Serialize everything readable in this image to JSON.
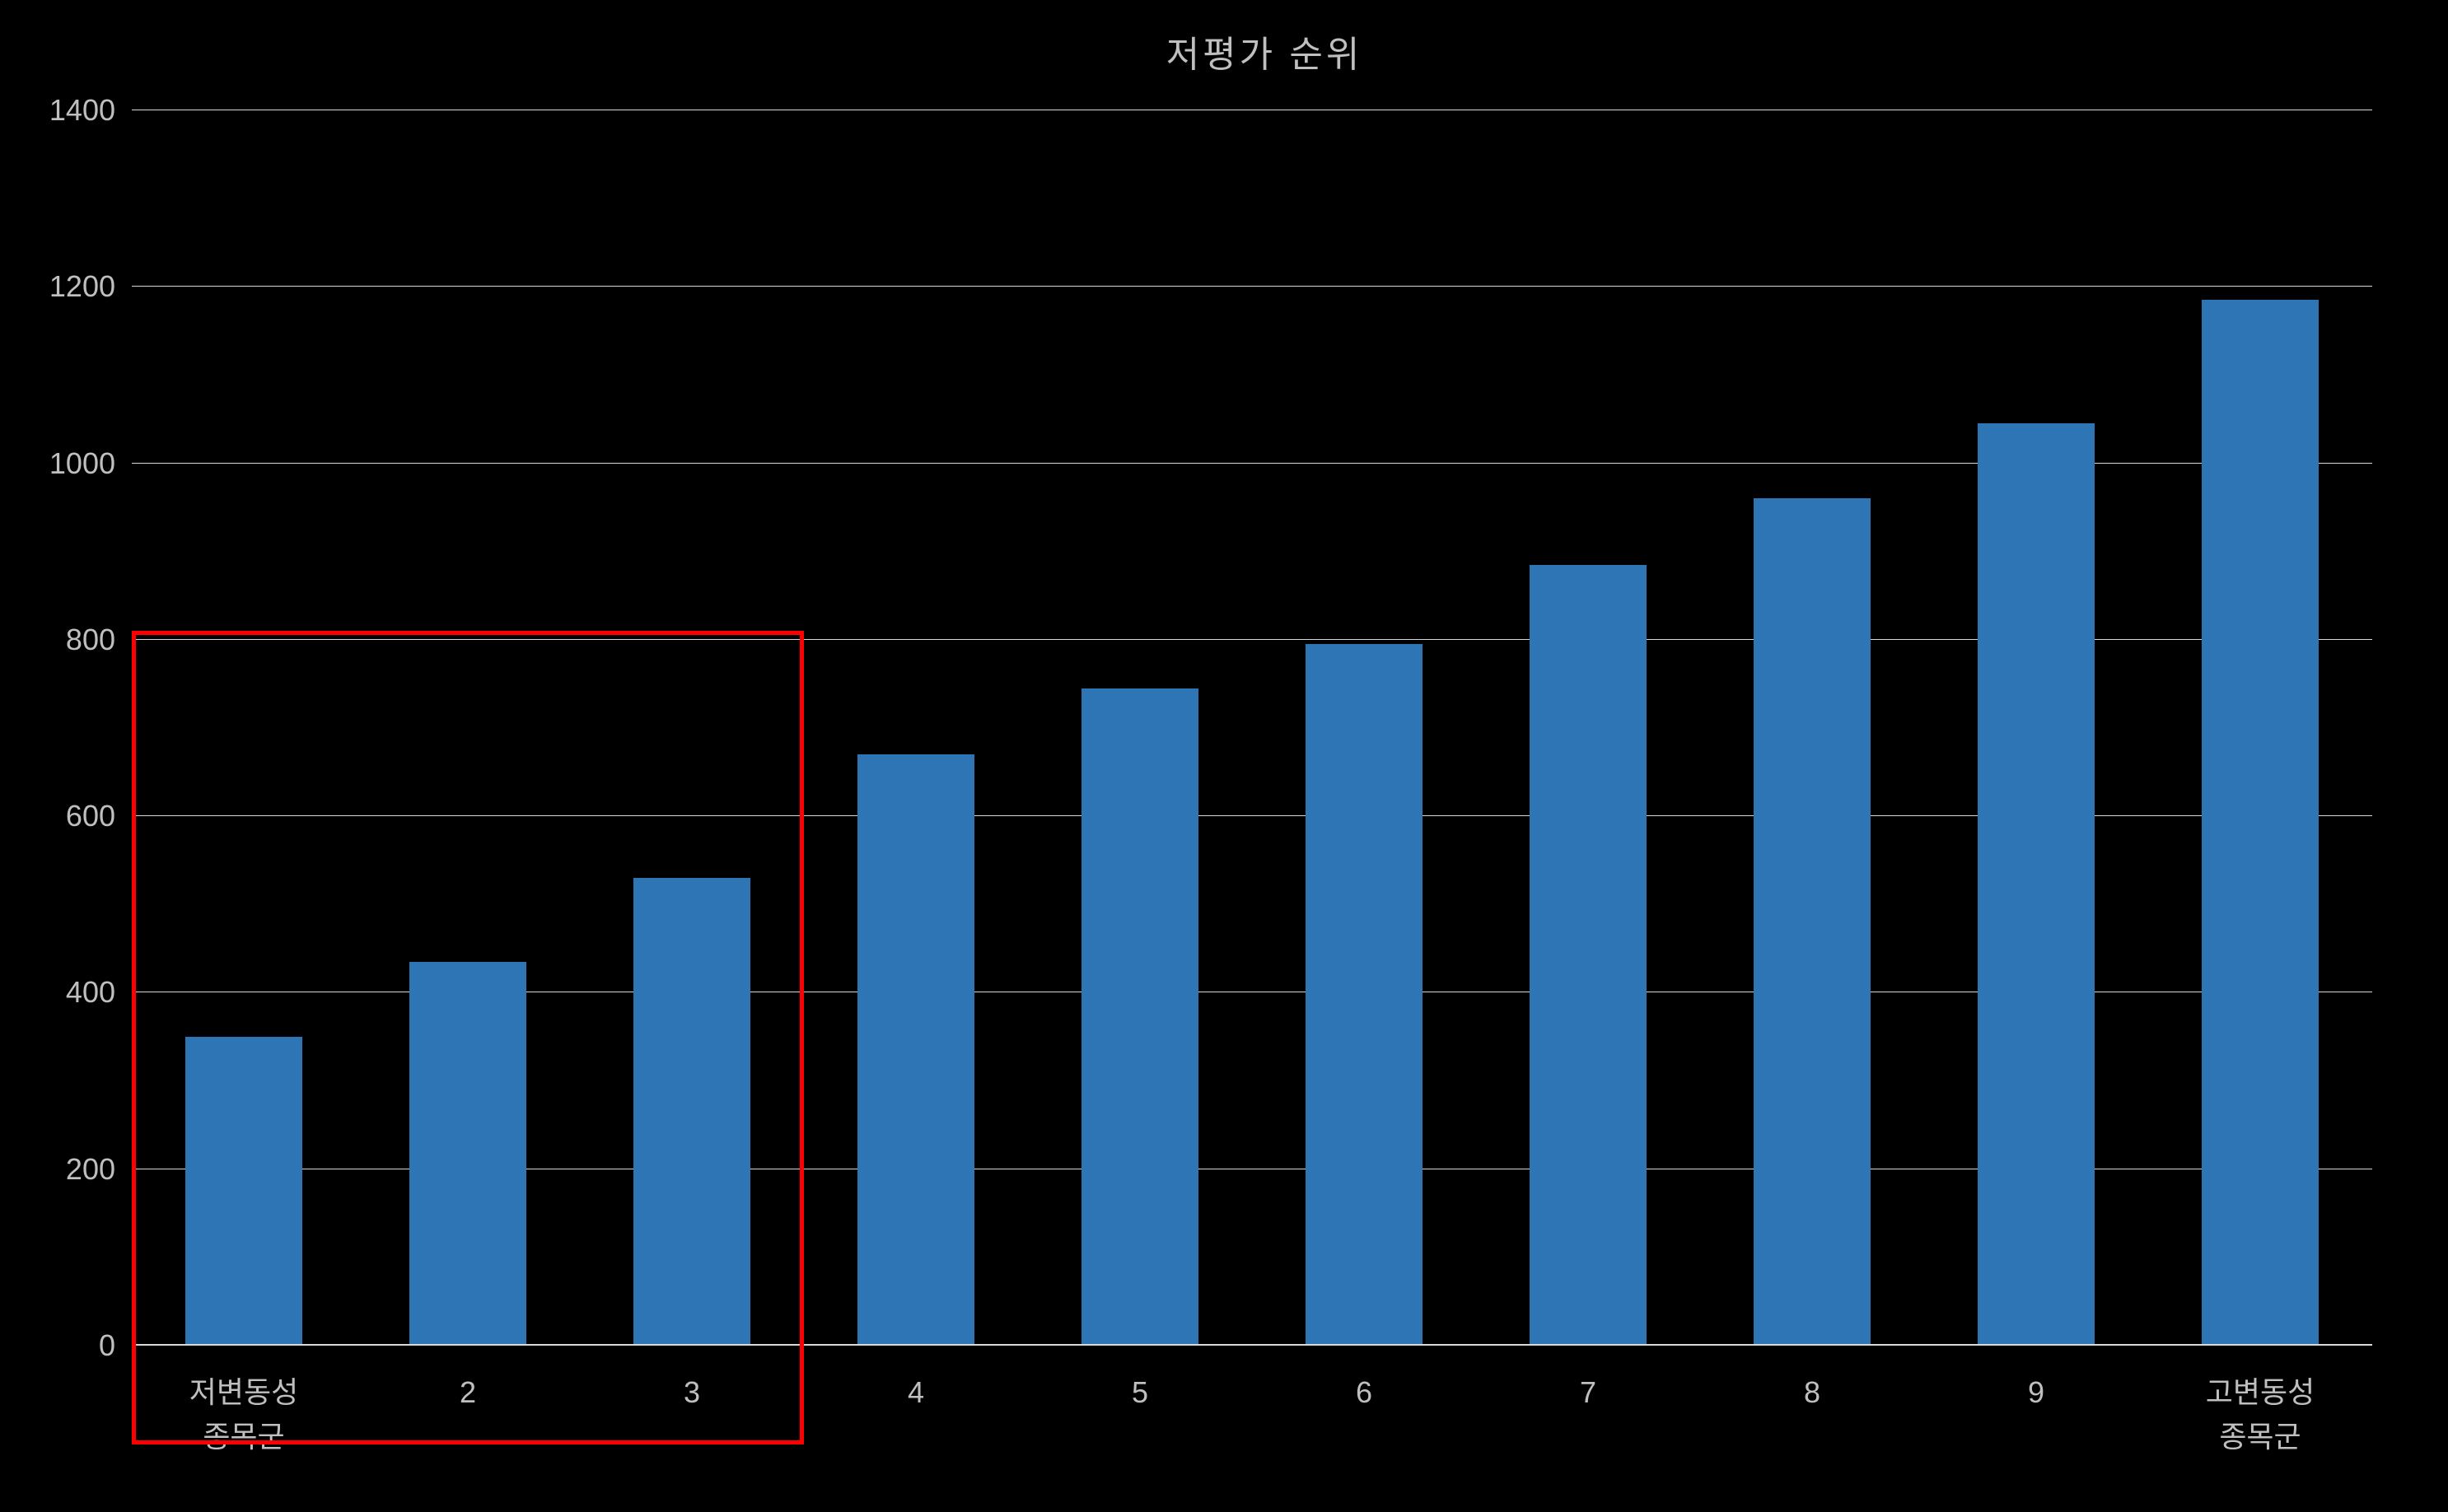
{
  "chart": {
    "type": "bar",
    "title": "저평가 순위",
    "title_fontsize": 44,
    "title_color": "#bfbfbf",
    "background_color": "#000000",
    "bar_color": "#2e75b6",
    "grid_color": "#d9d9d9",
    "axis_label_color": "#bfbfbf",
    "axis_label_fontsize": 36,
    "ylim": [
      0,
      1400
    ],
    "ytick_step": 200,
    "yticks": [
      {
        "value": 0,
        "label": "0"
      },
      {
        "value": 200,
        "label": "200"
      },
      {
        "value": 400,
        "label": "400"
      },
      {
        "value": 600,
        "label": "600"
      },
      {
        "value": 800,
        "label": "800"
      },
      {
        "value": 1000,
        "label": "1000"
      },
      {
        "value": 1200,
        "label": "1200"
      },
      {
        "value": 1400,
        "label": "1400"
      }
    ],
    "categories": [
      "저변동성\n종목군",
      "2",
      "3",
      "4",
      "5",
      "6",
      "7",
      "8",
      "9",
      "고변동성\n종목군"
    ],
    "values": [
      350,
      435,
      530,
      670,
      745,
      795,
      885,
      960,
      1045,
      1185
    ],
    "bar_width_ratio": 0.52,
    "highlight_box": {
      "start_index": 0,
      "end_index": 2,
      "top_value": 810,
      "bottom_value": -80,
      "border_color": "#ff0000",
      "border_width": 5
    }
  }
}
